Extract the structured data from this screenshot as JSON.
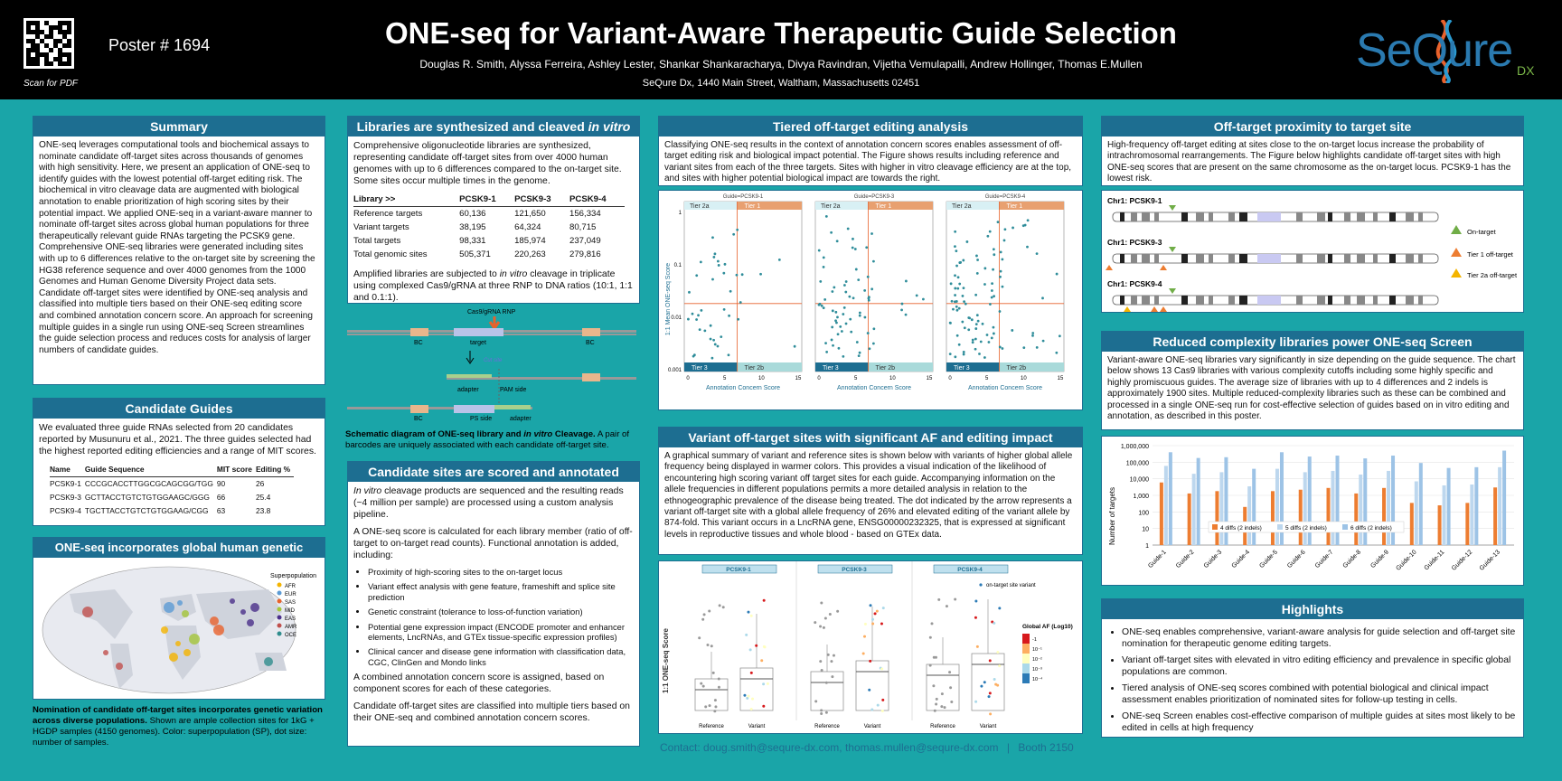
{
  "header": {
    "scan_label": "Scan for PDF",
    "poster_number": "Poster # 1694",
    "title": "ONE-seq for Variant-Aware Therapeutic Guide Selection",
    "authors": "Douglas R. Smith, Alyssa Ferreira, Ashley Lester, Shankar Shankaracharya, Divya Ravindran, Vijetha Vemulapalli, Andrew Hollinger, Thomas E.Mullen",
    "affiliation": "SeQure Dx, 1440 Main Street, Waltham, Massachusetts 02451",
    "logo": "SeQure",
    "logo_suffix": "DX"
  },
  "summary": {
    "title": "Summary",
    "text": "ONE-seq leverages computational tools and biochemical assays to nominate candidate off-target sites across thousands of genomes with high sensitivity. Here, we present an application of ONE-seq to identify guides with the lowest potential off-target editing risk. The biochemical in vitro cleavage data are augmented with biological annotation to enable prioritization of high scoring sites by their potential impact. We applied ONE-seq in a variant-aware manner to nominate off-target sites across global human populations for three therapeutically relevant guide RNAs targeting the PCSK9 gene. Comprehensive ONE-seq libraries were generated including sites with up to 6 differences relative to the on-target site by screening the HG38 reference sequence and over 4000 genomes from the 1000 Genomes and Human Genome Diversity Project data sets. Candidate off-target sites were identified by ONE-seq analysis and classified into multiple tiers based on their ONE-seq editing score and combined annotation concern score. An approach for screening multiple guides in a single run using ONE-seq Screen streamlines the guide selection process and reduces costs for analysis of larger numbers of candidate guides."
  },
  "candidate_guides": {
    "title": "Candidate Guides",
    "text": "We evaluated three guide RNAs selected from 20 candidates reported by Musunuru et al., 2021. The three guides selected had the highest reported editing efficiencies and a range of MIT scores.",
    "headers": [
      "Name",
      "Guide Sequence",
      "MIT score",
      "Editing %"
    ],
    "rows": [
      [
        "PCSK9-1",
        "CCCGCACCTTGGCGCAGCGG/TGG",
        "90",
        "26"
      ],
      [
        "PCSK9-3",
        "GCTTACCTGTCTGTGGAAGC/GGG",
        "66",
        "25.4"
      ],
      [
        "PCSK9-4",
        "TGCTTACCTGTCTGTGGAAG/CGG",
        "63",
        "23.8"
      ]
    ]
  },
  "diversity": {
    "title": "ONE-seq incorporates global human genetic diversity",
    "legend_title": "Superpopulation",
    "legend_items": [
      "AFR",
      "EUR",
      "SAS",
      "MID",
      "EAS",
      "AMR",
      "OCE"
    ],
    "caption_bold": "Nomination of candidate off-target sites incorporates genetic variation across diverse populations.",
    "caption_rest": " Shown are ample collection sites for 1kG + HGDP samples (4150 genomes). Color: superpopulation (SP), dot size: number of samples."
  },
  "libraries": {
    "title_a": "Libraries are synthesized and cleaved ",
    "title_b": "in vitro",
    "intro": "Comprehensive oligonucleotide libraries are synthesized, representing candidate off-target sites from over 4000 human genomes with up to 6 differences compared to the on-target site. Some sites occur multiple times in the genome.",
    "headers": [
      "Library >>",
      "PCSK9-1",
      "PCSK9-3",
      "PCSK9-4"
    ],
    "rows": [
      [
        "Reference targets",
        "60,136",
        "121,650",
        "156,334"
      ],
      [
        "Variant targets",
        "38,195",
        "64,324",
        "80,715"
      ],
      [
        "Total targets",
        "98,331",
        "185,974",
        "237,049"
      ],
      [
        "Total genomic sites",
        "505,371",
        "220,263",
        "279,816"
      ]
    ],
    "text2_a": "Amplified libraries are subjected to ",
    "text2_b": "in vitro",
    "text2_c": " cleavage in triplicate using complexed Cas9/gRNA at three RNP to DNA ratios (10:1, 1:1 and 0.1:1).",
    "schematic": {
      "rnp": "Cas9/gRNA RNP",
      "bc": "BC",
      "target": "target",
      "cut_site": "Cut site",
      "adapter": "adapter",
      "pam_side": "PAM side",
      "ps_side": "PS side"
    },
    "caption_bold_a": "Schematic diagram of ONE-seq library and ",
    "caption_bold_b": "in vitro",
    "caption_bold_c": " Cleavage.",
    "caption_rest": " A pair of barcodes are uniquely associated with each candidate off-target site."
  },
  "scored": {
    "title": "Candidate sites are scored and annotated",
    "p1_a": "In vitro",
    "p1_b": " cleavage products are sequenced and the resulting reads (~4 million per sample) are processed using a custom analysis pipeline.",
    "p2": "A ONE-seq score is calculated for each library member (ratio of off-target to on-target read counts). Functional annotation is added, including:",
    "bullets": [
      "Proximity of high-scoring sites to the on-target locus",
      "Variant effect analysis with gene feature, frameshift and splice site prediction",
      "Genetic constraint (tolerance to loss-of-function variation)",
      "Potential gene expression impact (ENCODE promoter and enhancer elements, LncRNAs, and GTEx tissue-specific expression profiles)",
      "Clinical cancer and disease gene information with classification data, CGC, ClinGen and Mondo links"
    ],
    "p3": "A combined annotation concern score is assigned, based on component scores for each of these categories.",
    "p4": "Candidate off-target sites are classified into multiple tiers based on their ONE-seq and combined annotation concern scores."
  },
  "tiered": {
    "title": "Tiered off-target editing analysis",
    "text": "Classifying ONE-seq results in the context of annotation concern scores enables assessment of off-target editing risk and biological impact potential. The Figure shows results including reference and variant sites from each of the three targets. Sites with higher in vitro cleavage efficiency are at the top, and sites with higher potential biological impact are towards the right.",
    "panel_titles": [
      "Guide=PCSK9-1",
      "Guide=PCSK9-3",
      "Guide=PCSK9-4"
    ],
    "tiers": [
      "Tier 2a",
      "Tier 1",
      "Tier 3",
      "Tier 2b"
    ],
    "ylabel": "1:1 Mean ONE-seq Score",
    "xlabel": "Annotation Concern Score",
    "yticks": [
      "1",
      "0.1",
      "0.01",
      "0.001"
    ],
    "xticks": [
      "0",
      "5",
      "10",
      "15"
    ]
  },
  "variant": {
    "title": "Variant off-target sites with significant AF and editing impact",
    "text": "A graphical summary of variant and reference sites is shown below with variants of higher global allele frequency being displayed in warmer colors. This provides a visual indication of the likelihood of encountering high scoring variant off target sites for each guide. Accompanying information on the allele frequencies in different populations permits a more detailed analysis in relation to the ethnogeographic prevalence of the disease being treated. The dot indicated by the arrow represents a variant off-target site with a global allele frequency of 26% and elevated editing of the variant allele by 874-fold. This variant occurs in a LncRNA gene, ENSG00000232325, that is expressed at significant levels in reproductive tissues and whole blood - based on GTEx data.",
    "panels": [
      "PCSK9-1",
      "PCSK9-3",
      "PCSK9-4"
    ],
    "xcats": [
      "Reference",
      "Variant"
    ],
    "ylabel": "1:1 ONE-seq Score",
    "legend_marker": "on-target site variant",
    "af_title": "Global AF (Log10)",
    "af_ticks": [
      "-1",
      "10⁻¹",
      "10⁻²",
      "10⁻³",
      "10⁻⁴"
    ]
  },
  "proximity": {
    "title": "Off-target proximity to target site",
    "text": "High-frequency off-target editing at sites close to the on-target locus increase the probability of intrachromosomal rearrangements. The Figure below highlights candidate off-target sites with high ONE-seq scores that are present on the same chromosome as the on-target locus. PCSK9-1 has the lowest risk.",
    "chroms": [
      "Chr1: PCSK9-1",
      "Chr1: PCSK9-3",
      "Chr1: PCSK9-4"
    ],
    "legend": [
      "On-target",
      "Tier 1 off-target",
      "Tier 2a off-target"
    ]
  },
  "reduced": {
    "title": "Reduced complexity libraries power ONE-seq Screen",
    "text": "Variant-aware ONE-seq libraries vary significantly in size depending on the guide sequence. The chart below shows 13 Cas9 libraries with various complexity cutoffs including some highly specific and highly promiscuous guides. The average size of libraries with up to 4 differences and 2 indels is approximately 1900 sites. Multiple reduced-complexity libraries such as these can be combined and processed in a single ONE-seq run for cost-effective selection of guides based on in vitro editing and annotation, as described in this poster."
  },
  "chart_data": {
    "type": "bar",
    "title": "",
    "xlabel": "",
    "ylabel": "Number of targets",
    "yscale": "log",
    "ylim": [
      1,
      1000000
    ],
    "yticks": [
      "1",
      "10",
      "100",
      "1,000",
      "10,000",
      "100,000",
      "1,000,000"
    ],
    "categories": [
      "Guide-1",
      "Guide-2",
      "Guide-3",
      "Guide-4",
      "Guide-5",
      "Guide-6",
      "Guide-7",
      "Guide-8",
      "Guide-9",
      "Guide-10",
      "Guide-11",
      "Guide-12",
      "Guide-13"
    ],
    "series": [
      {
        "name": "4 diffs (2 indels)",
        "color": "#ed7d31",
        "values": [
          6000,
          1300,
          1800,
          200,
          1800,
          2200,
          2800,
          1300,
          2800,
          350,
          250,
          350,
          3000
        ]
      },
      {
        "name": "5 diffs (2 indels)",
        "color": "#bdd7ee",
        "values": [
          60000,
          20000,
          25000,
          3500,
          40000,
          25000,
          30000,
          18000,
          30000,
          7000,
          4000,
          4500,
          50000
        ]
      },
      {
        "name": "6 diffs (2 indels)",
        "color": "#9dc3e6",
        "values": [
          400000,
          180000,
          200000,
          40000,
          400000,
          220000,
          250000,
          170000,
          250000,
          90000,
          45000,
          50000,
          500000
        ]
      }
    ],
    "legend": "bottom-inside"
  },
  "highlights": {
    "title": "Highlights",
    "bullets": [
      "ONE-seq enables comprehensive, variant-aware analysis for guide selection and off-target site nomination for therapeutic genome editing targets.",
      "Variant off-target sites with elevated in vitro editing efficiency and prevalence in specific global populations are common.",
      "Tiered analysis of ONE-seq scores combined with potential biological and clinical impact assessment enables prioritization of nominated sites for follow-up testing in cells.",
      "ONE-seq Screen enables cost-effective comparison of multiple guides at sites most likely to be edited in cells at high frequency"
    ]
  },
  "contact": {
    "text": "Contact: doug.smith@sequre-dx.com, thomas.mullen@sequre-dx.com",
    "sep": "|",
    "booth": "Booth 2150"
  }
}
